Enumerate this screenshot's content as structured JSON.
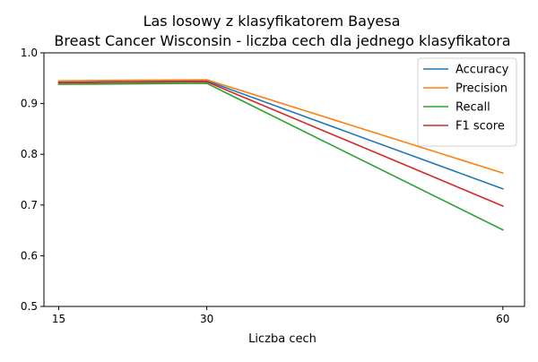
{
  "chart_data": {
    "type": "line",
    "title": "Las losowy z klasyfikatorem Bayesa",
    "subtitle": "Breast Cancer Wisconsin - liczba cech dla jednego klasyfikatora",
    "xlabel": "Liczba cech",
    "ylabel": "",
    "x": [
      15,
      30,
      60
    ],
    "x_tick_labels": [
      "15",
      "30",
      "60"
    ],
    "xlim": [
      13.5,
      62.2
    ],
    "ylim": [
      0.5,
      1.0
    ],
    "y_ticks": [
      0.5,
      0.6,
      0.7,
      0.8,
      0.9,
      1.0
    ],
    "y_tick_labels": [
      "0.5",
      "0.6",
      "0.7",
      "0.8",
      "0.9",
      "1.0"
    ],
    "grid": false,
    "legend_position": "top-right",
    "series": [
      {
        "name": "Accuracy",
        "color": "#1f77b4",
        "values": [
          0.942,
          0.945,
          0.732
        ]
      },
      {
        "name": "Precision",
        "color": "#ff7f0e",
        "values": [
          0.945,
          0.947,
          0.763
        ]
      },
      {
        "name": "Recall",
        "color": "#2ca02c",
        "values": [
          0.938,
          0.94,
          0.651
        ]
      },
      {
        "name": "F1 score",
        "color": "#d62728",
        "values": [
          0.941,
          0.943,
          0.698
        ]
      }
    ]
  }
}
